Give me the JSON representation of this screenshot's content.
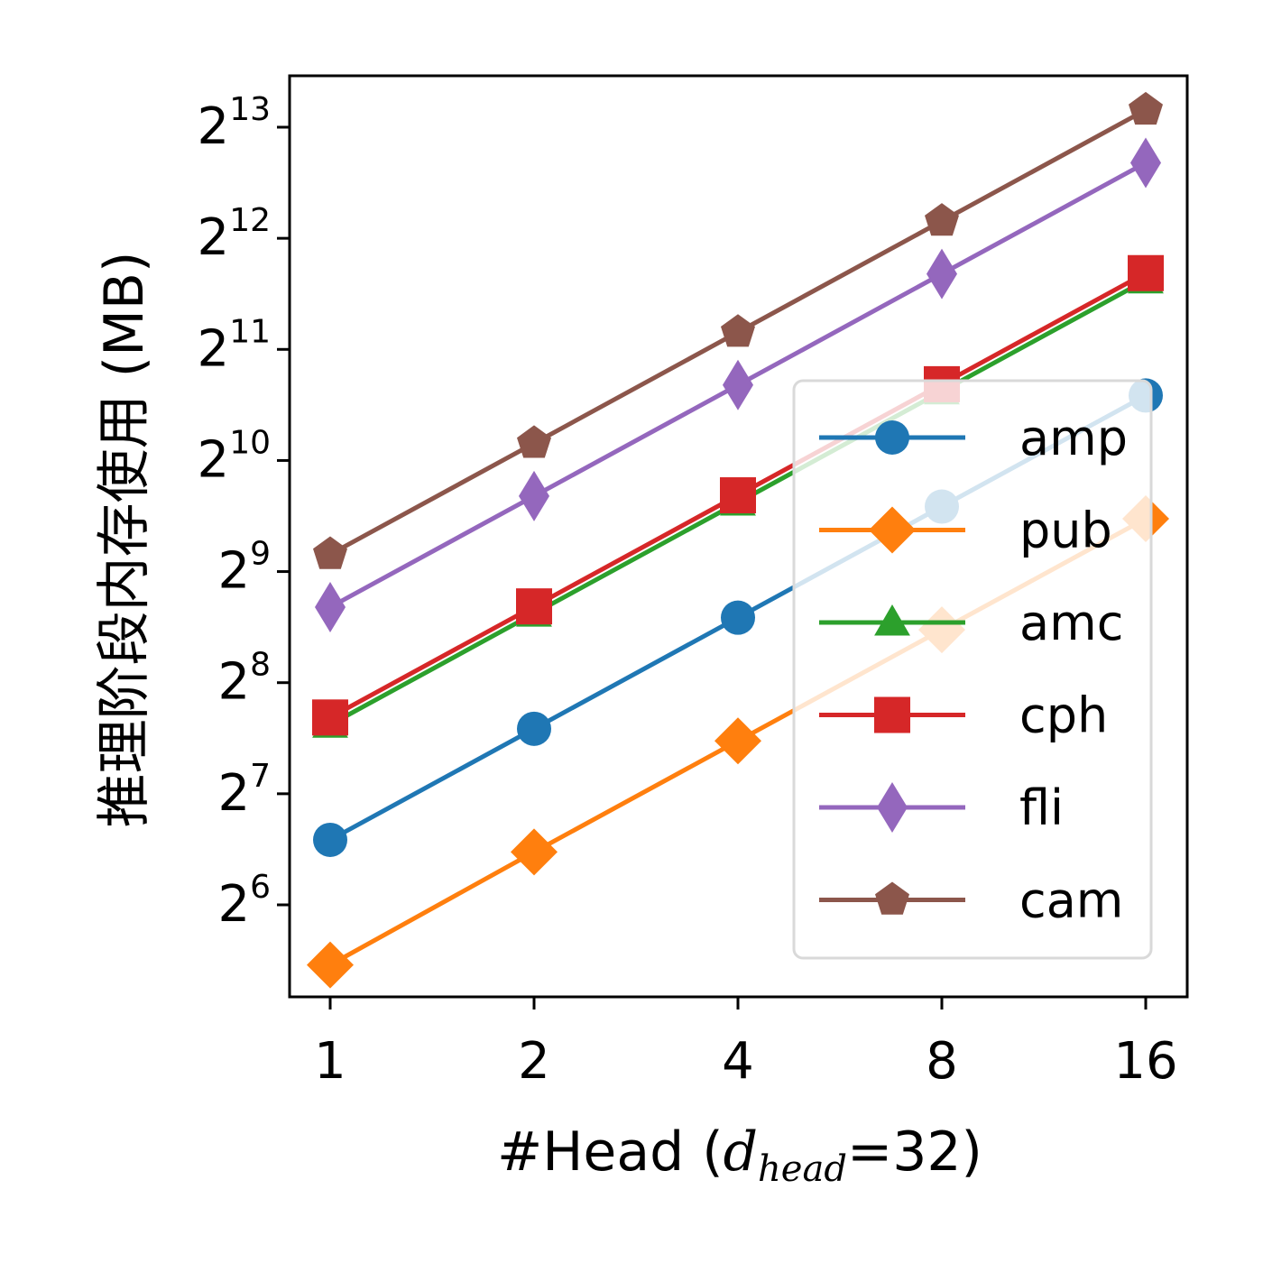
{
  "chart_data": {
    "type": "line",
    "x": [
      1,
      2,
      4,
      8,
      16
    ],
    "x_ticks": [
      "1",
      "2",
      "4",
      "8",
      "16"
    ],
    "x_scale": "log2",
    "y_scale": "log2",
    "y_ticks": [
      6,
      7,
      8,
      9,
      10,
      11,
      12,
      13
    ],
    "y_tick_base": "2",
    "ylim": [
      42,
      11000
    ],
    "xlabel": "#Head",
    "xlabel_paren": "(",
    "xlabel_math": "d",
    "xlabel_sub": "head",
    "xlabel_rest": "=32)",
    "ylabel": "推理阶段内存使用  (MB)",
    "legend_position": "lower-right",
    "series": [
      {
        "name": "amp",
        "color": "#1f77b4",
        "marker": "circle",
        "values": [
          96,
          192,
          384,
          768,
          1536
        ]
      },
      {
        "name": "pub",
        "color": "#ff7f0e",
        "marker": "diamond",
        "values": [
          44,
          89,
          178,
          356,
          712
        ]
      },
      {
        "name": "amc",
        "color": "#2ca02c",
        "marker": "triangle",
        "values": [
          197,
          394,
          788,
          1576,
          3152
        ]
      },
      {
        "name": "cph",
        "color": "#d62728",
        "marker": "square",
        "values": [
          206,
          412,
          824,
          1648,
          3296
        ]
      },
      {
        "name": "fli",
        "color": "#9467bd",
        "marker": "thin_diamond",
        "values": [
          410,
          820,
          1640,
          3280,
          6560
        ]
      },
      {
        "name": "cam",
        "color": "#8c564b",
        "marker": "pentagon",
        "values": [
          570,
          1140,
          2280,
          4560,
          9120
        ]
      }
    ]
  }
}
